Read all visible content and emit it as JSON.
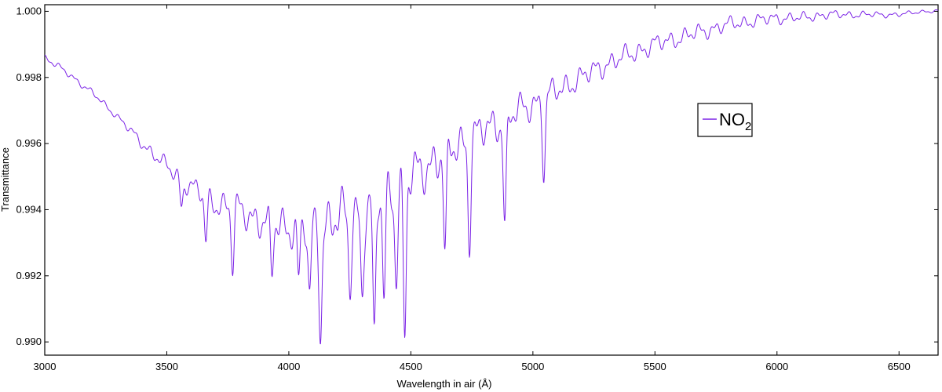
{
  "chart_data": {
    "type": "line",
    "title": "",
    "xlabel": "Wavelength in air (Å)",
    "ylabel": "Transmittance",
    "xlim": [
      3000,
      6660
    ],
    "ylim": [
      0.9896,
      1.0002
    ],
    "x_ticks": [
      3000,
      3500,
      4000,
      4500,
      5000,
      5500,
      6000,
      6500
    ],
    "y_ticks": [
      0.99,
      0.992,
      0.994,
      0.996,
      0.998,
      1.0
    ],
    "x_tick_labels": [
      "3000",
      "3500",
      "4000",
      "4500",
      "5000",
      "5500",
      "6000",
      "6500"
    ],
    "y_tick_labels": [
      "0.990",
      "0.992",
      "0.994",
      "0.996",
      "0.998",
      "1.000"
    ],
    "grid": false,
    "legend_position": "right",
    "series": [
      {
        "name": "NO2",
        "legend_label": "NO",
        "legend_subscript": "2",
        "color": "#7b22e6",
        "x": [
          3000,
          3100,
          3200,
          3300,
          3400,
          3500,
          3600,
          3700,
          3800,
          3900,
          4000,
          4100,
          4200,
          4300,
          4400,
          4500,
          4600,
          4700,
          4800,
          4900,
          5000,
          5100,
          5200,
          5300,
          5400,
          5500,
          5600,
          5700,
          5800,
          5900,
          6000,
          6100,
          6200,
          6300,
          6400,
          6500,
          6600,
          6660
        ],
        "y": [
          0.9986,
          0.9981,
          0.9975,
          0.9968,
          0.996,
          0.9953,
          0.9947,
          0.9942,
          0.994,
          0.9936,
          0.9935,
          0.9935,
          0.9937,
          0.994,
          0.9945,
          0.995,
          0.9955,
          0.996,
          0.9964,
          0.9968,
          0.9972,
          0.9976,
          0.998,
          0.9984,
          0.9987,
          0.999,
          0.9992,
          0.9994,
          0.9996,
          0.9997,
          0.9998,
          0.9998,
          0.9999,
          0.9999,
          0.9999,
          0.9999,
          1.0,
          1.0
        ],
        "dips": [
          {
            "x": 3560,
            "y": 0.9941
          },
          {
            "x": 3660,
            "y": 0.993
          },
          {
            "x": 3770,
            "y": 0.9923
          },
          {
            "x": 3930,
            "y": 0.992
          },
          {
            "x": 4040,
            "y": 0.9918
          },
          {
            "x": 4085,
            "y": 0.9912
          },
          {
            "x": 4130,
            "y": 0.9905
          },
          {
            "x": 4250,
            "y": 0.9918
          },
          {
            "x": 4300,
            "y": 0.9915
          },
          {
            "x": 4350,
            "y": 0.9897
          },
          {
            "x": 4390,
            "y": 0.9914
          },
          {
            "x": 4440,
            "y": 0.9922
          },
          {
            "x": 4475,
            "y": 0.9901
          },
          {
            "x": 4640,
            "y": 0.9925
          },
          {
            "x": 4740,
            "y": 0.9932
          },
          {
            "x": 4885,
            "y": 0.9935
          },
          {
            "x": 5045,
            "y": 0.9952
          }
        ]
      }
    ]
  }
}
